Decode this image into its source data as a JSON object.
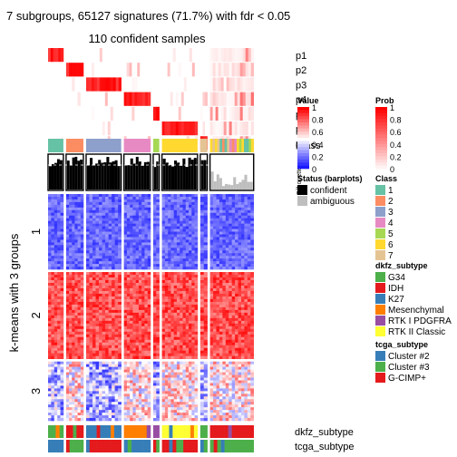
{
  "title": "7 subgroups, 65127 signatures (71.7%) with fdr < 0.05",
  "subtitle": "110 confident samples",
  "ylabel": "k-means with 3 groups",
  "prob_rows": [
    "p1",
    "p2",
    "p3",
    "p4",
    "p5",
    "p6",
    "p7"
  ],
  "class_row_label": "Class",
  "silhouette_label": "Silhouette score",
  "row_groups": [
    "1",
    "2",
    "3"
  ],
  "bottom_labels": [
    "dkfz_subtype",
    "tcga_subtype"
  ],
  "legends": {
    "value": {
      "title": "Value",
      "ticks": [
        "1",
        "0.8",
        "0.6",
        "0.4",
        "0.2",
        "0"
      ]
    },
    "prob": {
      "title": "Prob",
      "ticks": [
        "1",
        "0.8",
        "0.6",
        "0.4",
        "0.2",
        "0"
      ]
    },
    "status": {
      "title": "Status (barplots)",
      "items": [
        {
          "label": "confident",
          "color": "#000000"
        },
        {
          "label": "ambiguous",
          "color": "#bebebe"
        }
      ]
    },
    "class": {
      "title": "Class",
      "items": [
        {
          "label": "1",
          "color": "#66c2a5"
        },
        {
          "label": "2",
          "color": "#fc8d62"
        },
        {
          "label": "3",
          "color": "#8da0cb"
        },
        {
          "label": "4",
          "color": "#e78ac3"
        },
        {
          "label": "5",
          "color": "#a6d854"
        },
        {
          "label": "6",
          "color": "#ffd92f"
        },
        {
          "label": "7",
          "color": "#e5c494"
        }
      ]
    },
    "dkfz": {
      "title": "dkfz_subtype",
      "items": [
        {
          "label": "G34",
          "color": "#4daf4a"
        },
        {
          "label": "IDH",
          "color": "#e41a1c"
        },
        {
          "label": "K27",
          "color": "#377eb8"
        },
        {
          "label": "Mesenchymal",
          "color": "#ff7f00"
        },
        {
          "label": "RTK I PDGFRA",
          "color": "#984ea3"
        },
        {
          "label": "RTK II Classic",
          "color": "#ffff33"
        }
      ]
    },
    "tcga": {
      "title": "tcga_subtype",
      "items": [
        {
          "label": "Cluster #2",
          "color": "#377eb8"
        },
        {
          "label": "Cluster #3",
          "color": "#4daf4a"
        },
        {
          "label": "G-CIMP+",
          "color": "#e41a1c"
        }
      ]
    }
  },
  "chart_data": {
    "type": "heatmap",
    "classes": [
      {
        "class": "1",
        "fraction": 0.074
      },
      {
        "class": "2",
        "fraction": 0.082
      },
      {
        "class": "3",
        "fraction": 0.155
      },
      {
        "class": "4",
        "fraction": 0.12
      },
      {
        "class": "5",
        "fraction": 0.036
      },
      {
        "class": "6",
        "fraction": 0.157
      },
      {
        "class": "7",
        "fraction": 0.04
      },
      {
        "class": "unassigned",
        "fraction": 0.19
      }
    ],
    "row_groups": [
      {
        "group": "1",
        "fraction": 0.34,
        "pattern": "low"
      },
      {
        "group": "2",
        "fraction": 0.39,
        "pattern": "high"
      },
      {
        "group": "3",
        "fraction": 0.27,
        "pattern": "mixed"
      }
    ],
    "value_range": [
      0,
      1
    ],
    "prob_range": [
      0,
      1
    ]
  }
}
